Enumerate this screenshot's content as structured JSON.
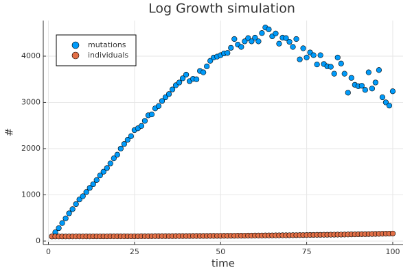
{
  "chart_data": {
    "type": "scatter",
    "title": "Log Growth simulation",
    "x_label": "time",
    "y_label": "#",
    "x": [
      1,
      2,
      3,
      4,
      5,
      6,
      7,
      8,
      9,
      10,
      11,
      12,
      13,
      14,
      15,
      16,
      17,
      18,
      19,
      20,
      21,
      22,
      23,
      24,
      25,
      26,
      27,
      28,
      29,
      30,
      31,
      32,
      33,
      34,
      35,
      36,
      37,
      38,
      39,
      40,
      41,
      42,
      43,
      44,
      45,
      46,
      47,
      48,
      49,
      50,
      51,
      52,
      53,
      54,
      55,
      56,
      57,
      58,
      59,
      60,
      61,
      62,
      63,
      64,
      65,
      66,
      67,
      68,
      69,
      70,
      71,
      72,
      73,
      74,
      75,
      76,
      77,
      78,
      79,
      80,
      81,
      82,
      83,
      84,
      85,
      86,
      87,
      88,
      89,
      90,
      91,
      92,
      93,
      94,
      95,
      96,
      97,
      98,
      99,
      100
    ],
    "series": [
      {
        "name": "mutations",
        "color": "#009af9",
        "values": [
          100,
          190,
          280,
          390,
          490,
          600,
          690,
          800,
          900,
          970,
          1060,
          1150,
          1230,
          1320,
          1420,
          1500,
          1580,
          1680,
          1790,
          1870,
          2000,
          2100,
          2190,
          2270,
          2400,
          2440,
          2490,
          2600,
          2720,
          2740,
          2870,
          2920,
          3030,
          3110,
          3180,
          3280,
          3370,
          3430,
          3520,
          3600,
          3460,
          3510,
          3500,
          3680,
          3650,
          3780,
          3900,
          3970,
          3990,
          4020,
          4060,
          4070,
          4180,
          4370,
          4250,
          4200,
          4320,
          4390,
          4320,
          4400,
          4320,
          4500,
          4620,
          4580,
          4430,
          4490,
          4270,
          4400,
          4390,
          4310,
          4200,
          4370,
          3930,
          4170,
          3970,
          4080,
          4020,
          3820,
          4020,
          3830,
          3780,
          3770,
          3620,
          3970,
          3840,
          3620,
          3210,
          3530,
          3380,
          3350,
          3360,
          3270,
          3650,
          3300,
          3430,
          3700,
          3110,
          3000,
          2930,
          3240
        ]
      },
      {
        "name": "individuals",
        "color": "#e26f46",
        "values": [
          100,
          100,
          100,
          100,
          100,
          100,
          101,
          101,
          101,
          101,
          101,
          101,
          102,
          102,
          102,
          102,
          102,
          103,
          103,
          103,
          103,
          103,
          104,
          104,
          104,
          104,
          105,
          105,
          105,
          105,
          106,
          106,
          106,
          107,
          107,
          107,
          108,
          108,
          108,
          109,
          109,
          110,
          110,
          110,
          111,
          111,
          112,
          112,
          113,
          113,
          114,
          114,
          115,
          115,
          116,
          116,
          117,
          118,
          118,
          119,
          120,
          120,
          121,
          122,
          122,
          123,
          124,
          125,
          125,
          126,
          127,
          128,
          129,
          130,
          131,
          132,
          133,
          134,
          135,
          136,
          137,
          138,
          139,
          140,
          141,
          142,
          144,
          145,
          146,
          148,
          149,
          150,
          152,
          153,
          155,
          156,
          158,
          160,
          161,
          163
        ]
      }
    ],
    "xlim": [
      -1.5,
      103
    ],
    "ylim": [
      -75,
      4770
    ],
    "xticks": [
      0,
      25,
      50,
      75,
      100
    ],
    "yticks": [
      0,
      1000,
      2000,
      3000,
      4000
    ],
    "grid": true,
    "legend": "top-left"
  }
}
